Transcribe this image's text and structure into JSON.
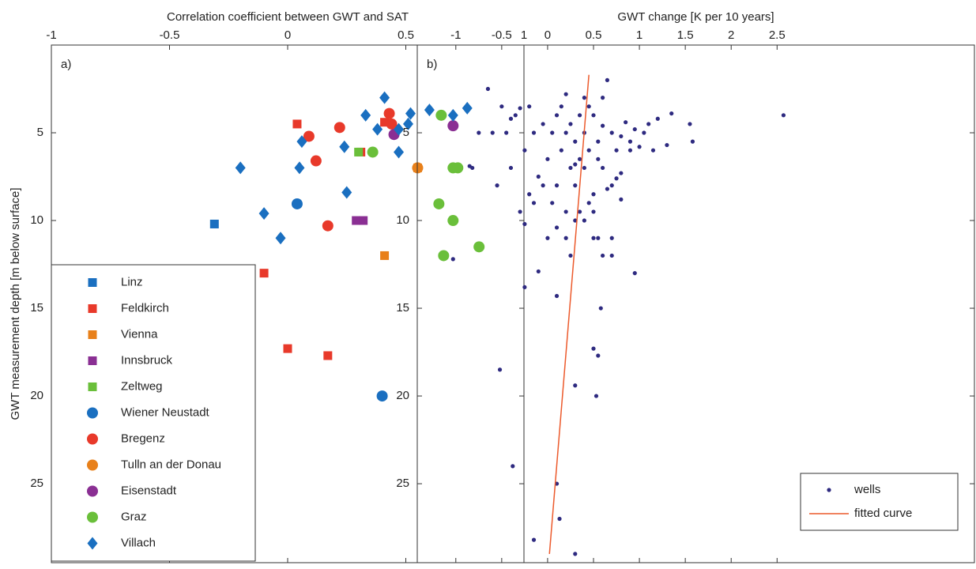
{
  "chart_data": [
    {
      "type": "scatter",
      "panel_label": "a)",
      "xlabel": "Correlation coefficient between GWT and SAT",
      "ylabel": "GWT measurement depth [m below surface]",
      "xlim": [
        -1,
        1
      ],
      "xticks": [
        -1,
        -0.5,
        0,
        0.5,
        1
      ],
      "ylim": [
        0,
        29.5
      ],
      "yticks": [
        5,
        10,
        15,
        20,
        25
      ],
      "y_reversed": true,
      "legend": "lower left",
      "series": [
        {
          "name": "Linz",
          "color": "#1a6fc0",
          "marker": "square",
          "x": [
            -0.31
          ],
          "y": [
            10.2
          ]
        },
        {
          "name": "Feldkirch",
          "color": "#e8392a",
          "marker": "square",
          "x": [
            0.04,
            0.31,
            0.41,
            -0.1,
            0.0,
            0.17
          ],
          "y": [
            4.5,
            6.1,
            4.4,
            13.0,
            17.3,
            17.7
          ]
        },
        {
          "name": "Vienna",
          "color": "#e8801a",
          "marker": "square",
          "x": [
            0.41,
            0.55
          ],
          "y": [
            12.0,
            7.0
          ]
        },
        {
          "name": "Innsbruck",
          "color": "#8a2f93",
          "marker": "square",
          "x": [
            0.29,
            0.32
          ],
          "y": [
            10.0,
            10.0
          ]
        },
        {
          "name": "Zeltweg",
          "color": "#6abf3a",
          "marker": "square",
          "x": [
            0.3
          ],
          "y": [
            6.1
          ]
        },
        {
          "name": "Wiener Neustadt",
          "color": "#1a6fc0",
          "marker": "circle",
          "x": [
            0.04,
            0.4
          ],
          "y": [
            9.05,
            20.0
          ]
        },
        {
          "name": "Bregenz",
          "color": "#e8392a",
          "marker": "circle",
          "x": [
            0.09,
            0.12,
            0.22,
            0.43,
            0.44,
            0.17
          ],
          "y": [
            5.2,
            6.6,
            4.7,
            3.9,
            4.5,
            10.3
          ]
        },
        {
          "name": "Tulln an der Donau",
          "color": "#e8801a",
          "marker": "circle",
          "x": [
            0.55
          ],
          "y": [
            7.0
          ]
        },
        {
          "name": "Eisenstadt",
          "color": "#8a2f93",
          "marker": "circle",
          "x": [
            0.7,
            0.45
          ],
          "y": [
            4.6,
            5.1
          ]
        },
        {
          "name": "Graz",
          "color": "#6abf3a",
          "marker": "circle",
          "x": [
            0.65,
            0.36,
            0.7,
            0.72,
            0.64,
            0.7,
            0.66,
            0.81
          ],
          "y": [
            4.0,
            6.1,
            7.0,
            7.0,
            9.05,
            10.0,
            12.0,
            11.5
          ]
        },
        {
          "name": "Villach",
          "color": "#1a6fc0",
          "marker": "diamond",
          "x": [
            -0.2,
            -0.1,
            -0.03,
            0.05,
            0.06,
            0.33,
            0.25,
            0.24,
            0.38,
            0.41,
            0.47,
            0.47,
            0.51,
            0.52,
            0.6,
            0.7,
            0.76
          ],
          "y": [
            7.0,
            9.6,
            11.0,
            7.0,
            5.5,
            4.0,
            8.4,
            5.8,
            4.8,
            3.0,
            4.8,
            6.1,
            4.5,
            3.9,
            3.7,
            4.0,
            3.6
          ]
        }
      ]
    },
    {
      "type": "scatter",
      "panel_label": "b)",
      "xlabel": "GWT change [K per 10 years]",
      "xlim": [
        -1.42,
        4.65
      ],
      "xticks": [
        -1,
        -0.5,
        0,
        0.5,
        1,
        1.5,
        2,
        2.5
      ],
      "ylim": [
        0,
        29.5
      ],
      "yticks": [
        5,
        10,
        15,
        20,
        25
      ],
      "y_reversed": true,
      "legend": "lower right",
      "series": [
        {
          "name": "wells",
          "color": "#2e2a80",
          "marker": "dot",
          "x": [
            2.57,
            1.55,
            1.58,
            1.35,
            1.3,
            1.2,
            1.1,
            1.05,
            1.0,
            0.95,
            0.9,
            0.85,
            0.8,
            0.8,
            0.75,
            0.75,
            0.7,
            0.7,
            0.65,
            0.6,
            0.6,
            0.6,
            0.55,
            0.55,
            0.5,
            0.5,
            0.45,
            0.45,
            0.4,
            0.4,
            0.4,
            0.35,
            0.35,
            0.3,
            0.3,
            0.25,
            0.25,
            0.2,
            0.2,
            0.15,
            0.15,
            0.1,
            0.1,
            0.05,
            0.0,
            -0.05,
            -0.1,
            -0.15,
            -0.2,
            -0.2,
            -0.25,
            -0.3,
            -0.35,
            -0.4,
            -0.45,
            -0.5,
            -0.55,
            -0.6,
            -0.65,
            -0.75,
            -0.82,
            -0.85,
            -0.4,
            -0.3,
            -0.25,
            -0.15,
            0.05,
            0.1,
            0.2,
            0.3,
            0.35,
            0.4,
            0.5,
            0.55,
            0.7,
            0.6,
            0.7,
            0.95,
            -0.1,
            -1.03,
            -0.25,
            0.1,
            0.58,
            0.5,
            0.55,
            -0.52,
            0.3,
            0.53,
            -0.38,
            0.1,
            0.13,
            -0.15,
            0.3,
            0.25,
            0.0,
            0.5,
            0.65,
            0.8,
            -0.05,
            0.3,
            0.45,
            0.2,
            0.9,
            1.15
          ],
          "y": [
            4.0,
            4.5,
            5.5,
            3.9,
            5.7,
            4.2,
            4.5,
            5.0,
            5.8,
            4.8,
            6.0,
            4.4,
            5.2,
            7.3,
            6.0,
            7.6,
            5.0,
            8.0,
            2.0,
            3.0,
            4.6,
            7.0,
            5.5,
            6.5,
            4.0,
            8.5,
            6.0,
            9.0,
            3.0,
            5.0,
            7.0,
            4.0,
            6.5,
            8.0,
            5.5,
            4.5,
            7.0,
            9.5,
            5.0,
            3.5,
            6.0,
            4.0,
            8.0,
            5.0,
            6.5,
            4.5,
            7.5,
            5.0,
            3.5,
            8.5,
            6.0,
            9.5,
            4.0,
            7.0,
            5.0,
            3.5,
            8.0,
            5.0,
            2.5,
            5.0,
            7.0,
            6.9,
            4.2,
            3.6,
            10.2,
            9.0,
            9.0,
            10.4,
            11.0,
            10.0,
            9.5,
            10.0,
            11.0,
            11.0,
            11.0,
            12.0,
            12.0,
            13.0,
            12.9,
            12.2,
            13.8,
            14.3,
            15.0,
            17.3,
            17.7,
            18.5,
            19.4,
            20.0,
            24.0,
            25.0,
            27.0,
            28.2,
            29.0,
            12.0,
            11.0,
            9.5,
            8.2,
            8.8,
            8.0,
            6.8,
            3.5,
            2.8,
            5.5,
            6.0
          ]
        },
        {
          "name": "fitted curve",
          "color": "#ec5a2c",
          "marker": "line",
          "x": [
            0.45,
            0.02
          ],
          "y": [
            1.7,
            29.0
          ]
        }
      ]
    }
  ]
}
